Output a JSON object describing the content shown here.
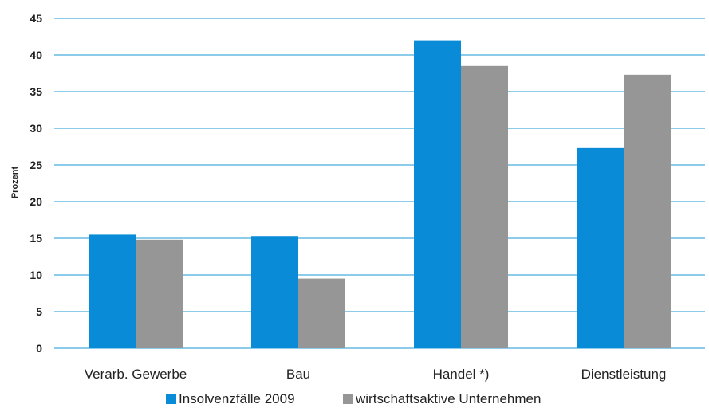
{
  "chart_data": {
    "type": "bar",
    "categories": [
      "Verarb. Gewerbe",
      "Bau",
      "Handel *)",
      "Dienstleistung"
    ],
    "series": [
      {
        "name": "Insolvenzfälle 2009",
        "color": "#0a8bd8",
        "values": [
          15.5,
          15.3,
          42.0,
          27.3
        ]
      },
      {
        "name": "wirtschaftsaktive Unternehmen",
        "color": "#969696",
        "values": [
          14.8,
          9.5,
          38.5,
          37.3
        ]
      }
    ],
    "title": "",
    "xlabel": "",
    "ylabel": "Prozent",
    "ylim": [
      0,
      45
    ],
    "yticks": [
      "0",
      "5",
      "10",
      "15",
      "20",
      "25",
      "30",
      "35",
      "40",
      "45"
    ],
    "grid": true,
    "gridline_color": "#1a9ad6",
    "legend_position": "bottom"
  }
}
